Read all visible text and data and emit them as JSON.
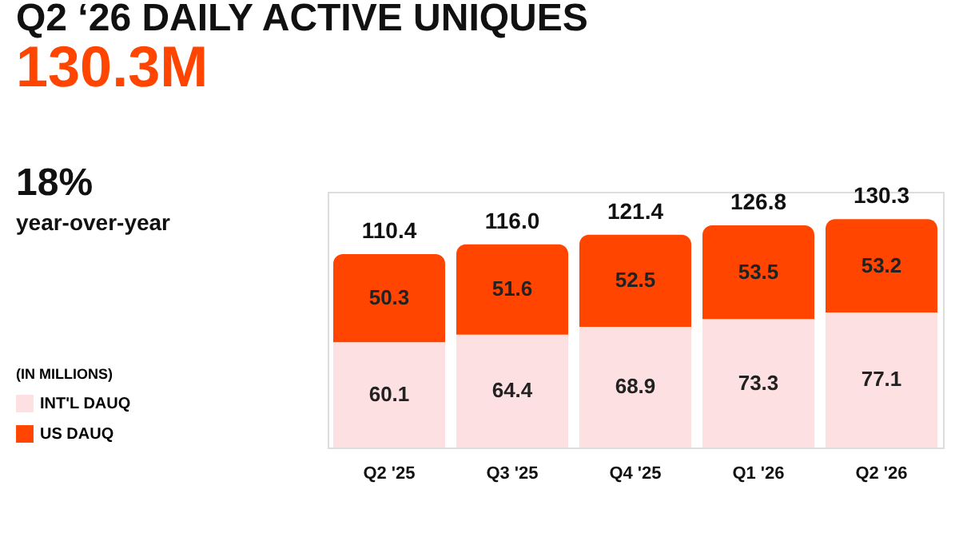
{
  "chart_data": {
    "type": "bar",
    "title": "Q2 ‘26 DAILY ACTIVE UNIQUES",
    "subtitle": "130.3M",
    "annotations": [
      "18%",
      "year-over-year"
    ],
    "categories": [
      "Q2 '25",
      "Q3 '25",
      "Q4 '25",
      "Q1 '26",
      "Q2 '26"
    ],
    "series": [
      {
        "name": "INT'L DAUQ",
        "color": "#fde0e2",
        "values": [
          60.1,
          64.4,
          68.9,
          73.3,
          77.1
        ]
      },
      {
        "name": "US DAUQ",
        "color": "#ff4500",
        "values": [
          50.3,
          51.6,
          52.5,
          53.5,
          53.2
        ]
      }
    ],
    "stacked": true,
    "data_labels": true,
    "totals": [
      "110.4",
      "116.0",
      "121.4",
      "126.8",
      "130.3"
    ],
    "legend_title": "(IN MILLIONS)",
    "legend": "left",
    "grid": false,
    "tick_labels": "x"
  }
}
